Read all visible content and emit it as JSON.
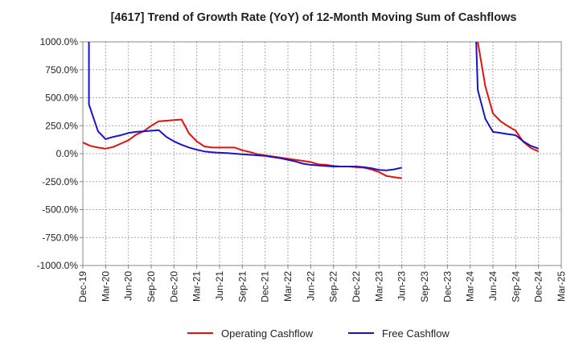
{
  "chart_data": {
    "type": "line",
    "title": "[4617]  Trend of Growth Rate (YoY) of 12-Month Moving Sum of Cashflows",
    "xlabel": "",
    "ylabel": "",
    "ylim": [
      -1000,
      1000
    ],
    "yticks": [
      1000,
      750,
      500,
      250,
      0,
      -250,
      -500,
      -750,
      -1000
    ],
    "ytick_labels": [
      "1000.0%",
      "750.0%",
      "500.0%",
      "250.0%",
      "0.0%",
      "-250.0%",
      "-500.0%",
      "-750.0%",
      "-1000.0%"
    ],
    "xtick_labels": [
      "Dec-19",
      "Mar-20",
      "Jun-20",
      "Sep-20",
      "Dec-20",
      "Mar-21",
      "Jun-21",
      "Sep-21",
      "Dec-21",
      "Mar-22",
      "Jun-22",
      "Sep-22",
      "Dec-22",
      "Mar-23",
      "Jun-23",
      "Sep-23",
      "Dec-23",
      "Mar-24",
      "Jun-24",
      "Sep-24",
      "Dec-24",
      "Mar-25"
    ],
    "x_months_total": 63,
    "grid": true,
    "legend_position": "bottom-center",
    "series": [
      {
        "name": "Operating Cashflow",
        "color": "#e3120b",
        "points": [
          [
            0,
            100
          ],
          [
            1,
            70
          ],
          [
            2,
            55
          ],
          [
            3,
            45
          ],
          [
            4,
            60
          ],
          [
            5,
            90
          ],
          [
            6,
            120
          ],
          [
            7,
            170
          ],
          [
            8,
            200
          ],
          [
            9,
            250
          ],
          [
            10,
            290
          ],
          [
            11,
            295
          ],
          [
            12,
            300
          ],
          [
            13,
            305
          ],
          [
            14,
            180
          ],
          [
            15,
            110
          ],
          [
            16,
            65
          ],
          [
            17,
            55
          ],
          [
            18,
            55
          ],
          [
            19,
            55
          ],
          [
            20,
            55
          ],
          [
            21,
            30
          ],
          [
            22,
            15
          ],
          [
            23,
            -5
          ],
          [
            24,
            -15
          ],
          [
            25,
            -25
          ],
          [
            26,
            -35
          ],
          [
            27,
            -45
          ],
          [
            28,
            -55
          ],
          [
            29,
            -65
          ],
          [
            30,
            -75
          ],
          [
            31,
            -95
          ],
          [
            32,
            -100
          ],
          [
            33,
            -110
          ],
          [
            34,
            -115
          ],
          [
            35,
            -115
          ],
          [
            36,
            -120
          ],
          [
            37,
            -125
          ],
          [
            38,
            -140
          ],
          [
            39,
            -165
          ],
          [
            40,
            -200
          ],
          [
            41,
            -210
          ],
          [
            42,
            -220
          ],
          [
            null,
            null
          ],
          [
            52,
            1000
          ],
          [
            53,
            600
          ],
          [
            54,
            360
          ],
          [
            55,
            290
          ],
          [
            56,
            245
          ],
          [
            57,
            205
          ],
          [
            58,
            105
          ],
          [
            59,
            50
          ],
          [
            60,
            20
          ]
        ]
      },
      {
        "name": "Free Cashflow",
        "color": "#1a14c8",
        "points": [
          [
            0.8,
            1000
          ],
          [
            0.8,
            440
          ],
          [
            2,
            200
          ],
          [
            3,
            130
          ],
          [
            4,
            150
          ],
          [
            5,
            165
          ],
          [
            6,
            185
          ],
          [
            7,
            195
          ],
          [
            8,
            200
          ],
          [
            9,
            205
          ],
          [
            10,
            210
          ],
          [
            11,
            150
          ],
          [
            12,
            110
          ],
          [
            13,
            80
          ],
          [
            14,
            55
          ],
          [
            15,
            35
          ],
          [
            16,
            20
          ],
          [
            17,
            12
          ],
          [
            18,
            8
          ],
          [
            19,
            5
          ],
          [
            20,
            0
          ],
          [
            21,
            -5
          ],
          [
            22,
            -10
          ],
          [
            23,
            -15
          ],
          [
            24,
            -20
          ],
          [
            25,
            -30
          ],
          [
            26,
            -40
          ],
          [
            27,
            -55
          ],
          [
            28,
            -70
          ],
          [
            29,
            -90
          ],
          [
            30,
            -100
          ],
          [
            31,
            -105
          ],
          [
            32,
            -110
          ],
          [
            33,
            -115
          ],
          [
            34,
            -115
          ],
          [
            35,
            -115
          ],
          [
            36,
            -115
          ],
          [
            37,
            -120
          ],
          [
            38,
            -130
          ],
          [
            39,
            -145
          ],
          [
            40,
            -150
          ],
          [
            41,
            -140
          ],
          [
            42,
            -125
          ],
          [
            null,
            null
          ],
          [
            51.8,
            1000
          ],
          [
            52,
            570
          ],
          [
            53,
            310
          ],
          [
            54,
            195
          ],
          [
            55,
            185
          ],
          [
            56,
            175
          ],
          [
            57,
            165
          ],
          [
            58,
            110
          ],
          [
            59,
            70
          ],
          [
            60,
            45
          ]
        ]
      }
    ]
  }
}
